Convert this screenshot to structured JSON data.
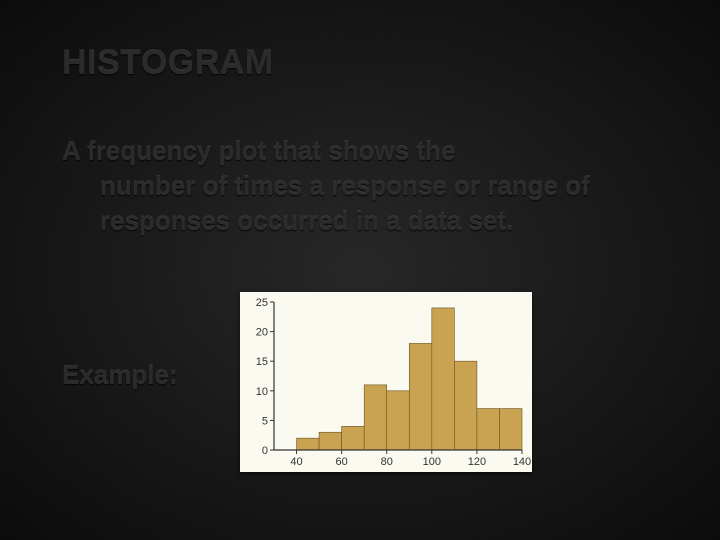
{
  "title": "HISTOGRAM",
  "definition": {
    "first": "A frequency plot that shows the",
    "rest": "number of times a response or range of responses occurred in a data set."
  },
  "example_label": "Example:",
  "chart": {
    "type": "histogram",
    "background_color": "#fbfaf0",
    "bar_color": "#caa352",
    "bar_edge_color": "#6a5320",
    "axis_color": "#333333",
    "text_color": "#333333",
    "label_fontsize": 11,
    "xlim": [
      30,
      140
    ],
    "ylim": [
      0,
      25
    ],
    "xticks": [
      40,
      60,
      80,
      100,
      120,
      140
    ],
    "yticks": [
      0,
      5,
      10,
      15,
      20,
      25
    ],
    "bin_edges": [
      30,
      40,
      50,
      60,
      70,
      80,
      90,
      100,
      110,
      120,
      130,
      140
    ],
    "counts": [
      0,
      2,
      3,
      4,
      11,
      10,
      18,
      24,
      15,
      7,
      7
    ]
  }
}
